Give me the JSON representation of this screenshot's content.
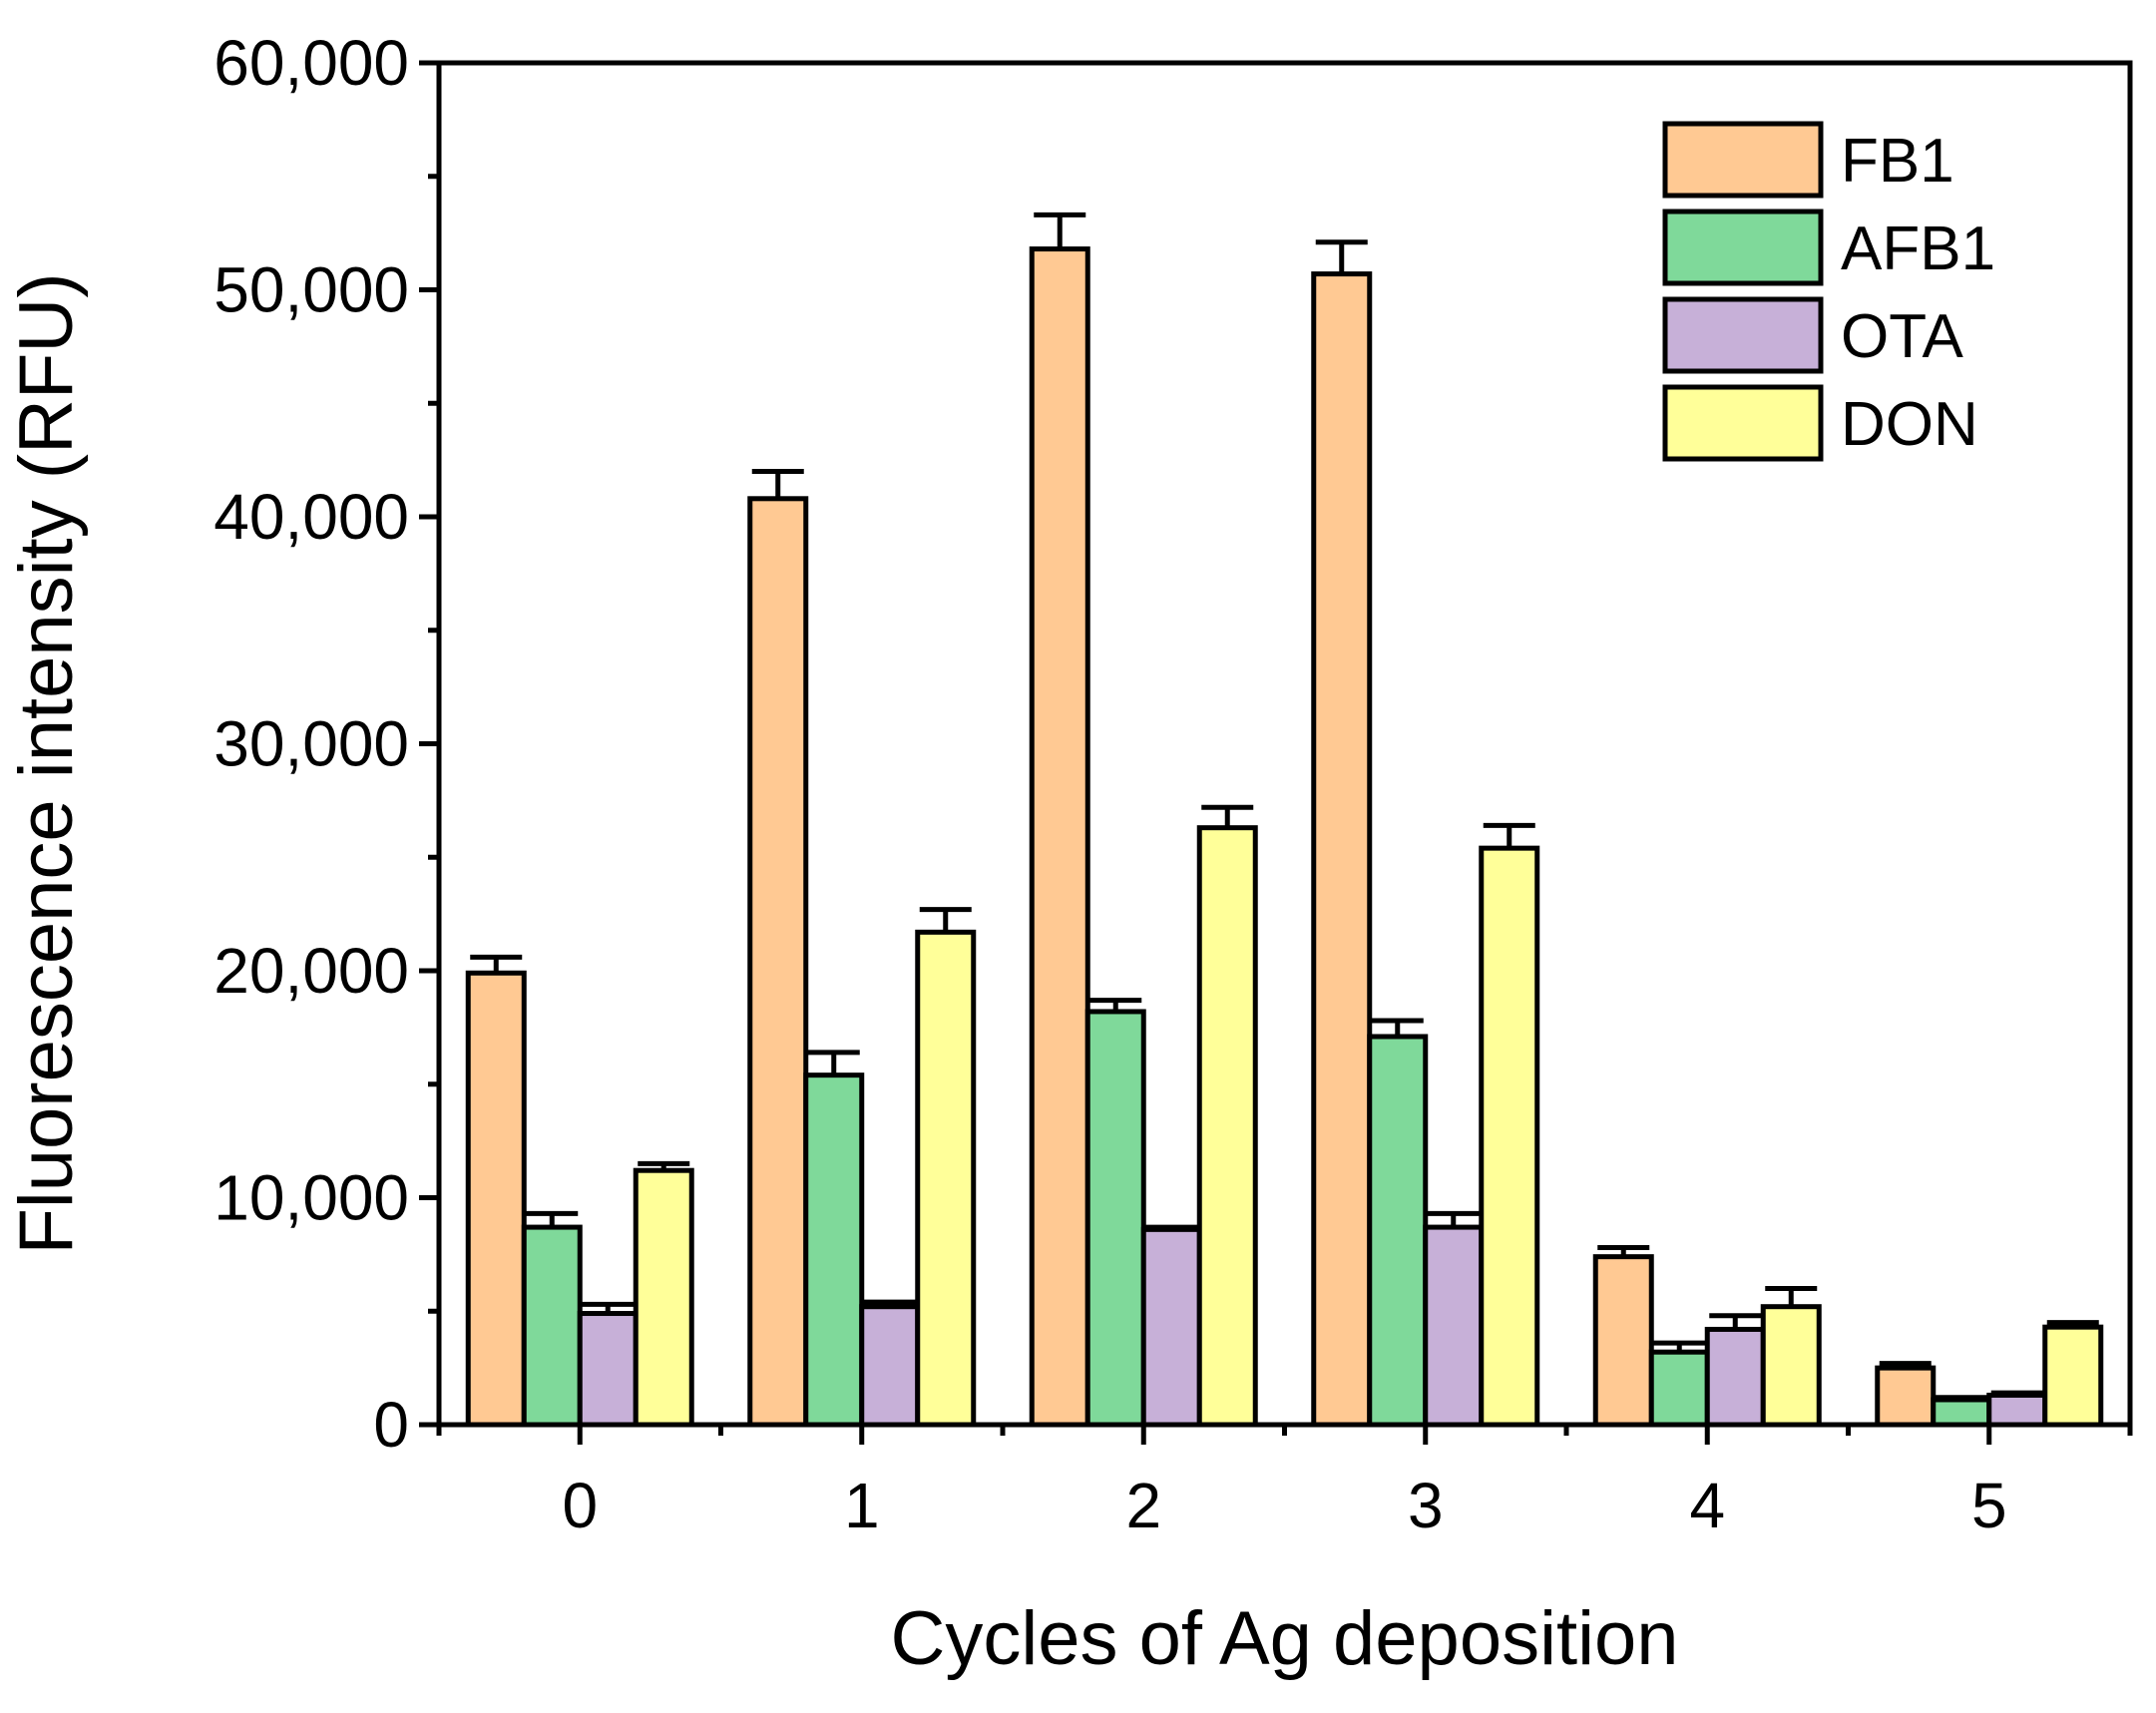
{
  "chart_data": {
    "type": "bar",
    "title": "",
    "xlabel": "Cycles of Ag deposition",
    "ylabel": "Fluorescence intensity (RFU)",
    "ylim": [
      0,
      60000
    ],
    "yticks": [
      0,
      10000,
      20000,
      30000,
      40000,
      50000,
      60000
    ],
    "ytick_labels": [
      "0",
      "10,000",
      "20,000",
      "30,000",
      "40,000",
      "50,000",
      "60,000"
    ],
    "categories": [
      "0",
      "1",
      "2",
      "3",
      "4",
      "5"
    ],
    "legend_position": "top-right",
    "grid": false,
    "series": [
      {
        "name": "FB1",
        "color": "#FFC993",
        "values": [
          19900,
          40800,
          51800,
          50700,
          7400,
          2500
        ],
        "errors": [
          700,
          1200,
          1500,
          1400,
          400,
          200
        ]
      },
      {
        "name": "AFB1",
        "color": "#7FD99A",
        "values": [
          8700,
          15400,
          18200,
          17100,
          3200,
          1100
        ],
        "errors": [
          600,
          1000,
          500,
          700,
          400,
          100
        ]
      },
      {
        "name": "OTA",
        "color": "#C7B0D8",
        "values": [
          4900,
          5200,
          8600,
          8700,
          4200,
          1300
        ],
        "errors": [
          400,
          200,
          100,
          600,
          600,
          100
        ]
      },
      {
        "name": "DON",
        "color": "#FFFF99",
        "values": [
          11200,
          21700,
          26300,
          25400,
          5200,
          4300
        ],
        "errors": [
          300,
          1000,
          900,
          1000,
          800,
          200
        ]
      }
    ]
  }
}
